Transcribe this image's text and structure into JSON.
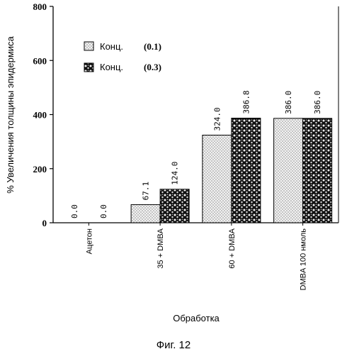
{
  "figure_caption": "Фиг. 12",
  "chart_data": {
    "type": "bar",
    "title": "",
    "xlabel": "Обработка",
    "ylabel": "% Увеличения толщины эпидермиса",
    "ylim": [
      0,
      800
    ],
    "yticks": [
      0,
      200,
      400,
      600,
      800
    ],
    "grid": false,
    "legend_position": "top-left",
    "categories": [
      "Ацетон",
      "35 + DMBA",
      "60 + DMBA",
      "DMBA 100 нмоль"
    ],
    "series": [
      {
        "name": "Конц.",
        "qualifier": "(0.1)",
        "values": [
          0.0,
          67.1,
          324.0,
          386.0
        ],
        "labels": [
          "0.0",
          "67.1",
          "324.0",
          "386.0"
        ],
        "pattern": "light-dotted"
      },
      {
        "name": "Конц.",
        "qualifier": "(0.3)",
        "values": [
          0.0,
          124.0,
          386.8,
          386.0
        ],
        "labels": [
          "0.0",
          "124.0",
          "386.8",
          "386.0"
        ],
        "pattern": "dark-speckled"
      }
    ]
  }
}
